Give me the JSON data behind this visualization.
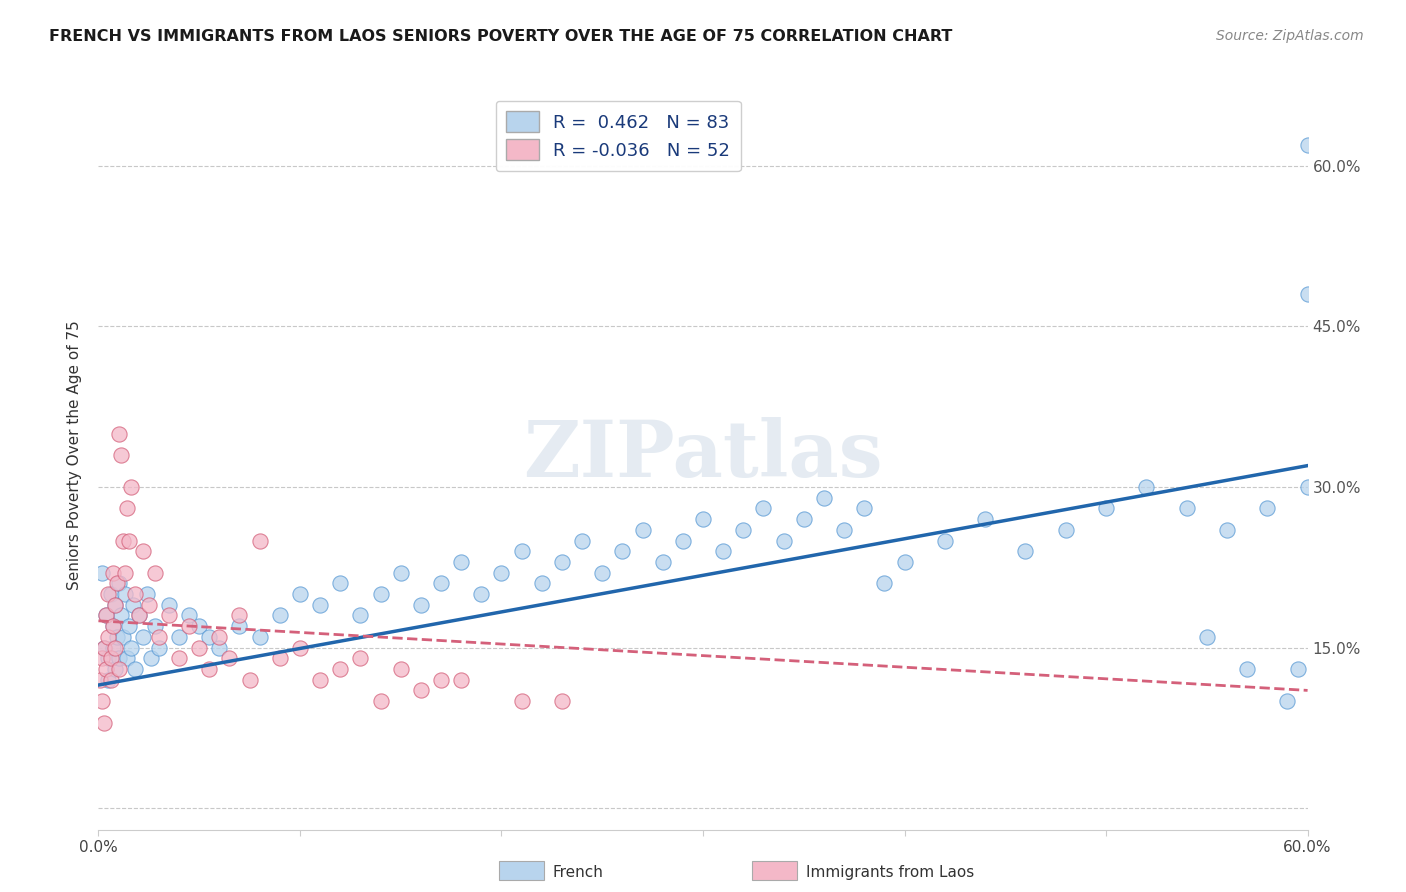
{
  "title": "FRENCH VS IMMIGRANTS FROM LAOS SENIORS POVERTY OVER THE AGE OF 75 CORRELATION CHART",
  "source": "Source: ZipAtlas.com",
  "ylabel": "Seniors Poverty Over the Age of 75",
  "xlim": [
    0.0,
    0.6
  ],
  "ylim": [
    -0.02,
    0.68
  ],
  "yticks": [
    0.0,
    0.15,
    0.3,
    0.45,
    0.6
  ],
  "ytick_labels_right": [
    "",
    "15.0%",
    "30.0%",
    "45.0%",
    "60.0%"
  ],
  "watermark": "ZIPatlas",
  "french_color": "#b8d4ed",
  "french_edge_color": "#5b9bd5",
  "laos_color": "#f4b8c8",
  "laos_edge_color": "#d4607a",
  "french_line_color": "#2166ac",
  "laos_line_color": "#d4607a",
  "legend_french_label": "French",
  "legend_laos_label": "Immigrants from Laos",
  "R_french": 0.462,
  "N_french": 83,
  "R_laos": -0.036,
  "N_laos": 52,
  "french_x": [
    0.002,
    0.003,
    0.004,
    0.005,
    0.005,
    0.006,
    0.007,
    0.007,
    0.008,
    0.008,
    0.009,
    0.01,
    0.01,
    0.011,
    0.012,
    0.013,
    0.014,
    0.015,
    0.016,
    0.017,
    0.018,
    0.02,
    0.022,
    0.024,
    0.026,
    0.028,
    0.03,
    0.035,
    0.04,
    0.045,
    0.05,
    0.055,
    0.06,
    0.07,
    0.08,
    0.09,
    0.1,
    0.11,
    0.12,
    0.13,
    0.14,
    0.15,
    0.16,
    0.17,
    0.18,
    0.19,
    0.2,
    0.21,
    0.22,
    0.23,
    0.24,
    0.25,
    0.26,
    0.27,
    0.28,
    0.29,
    0.3,
    0.31,
    0.32,
    0.33,
    0.34,
    0.35,
    0.36,
    0.37,
    0.38,
    0.39,
    0.4,
    0.42,
    0.44,
    0.46,
    0.48,
    0.5,
    0.52,
    0.54,
    0.55,
    0.56,
    0.57,
    0.58,
    0.59,
    0.595,
    0.6,
    0.6,
    0.6
  ],
  "french_y": [
    0.22,
    0.15,
    0.18,
    0.14,
    0.12,
    0.2,
    0.17,
    0.15,
    0.19,
    0.13,
    0.16,
    0.21,
    0.14,
    0.18,
    0.16,
    0.2,
    0.14,
    0.17,
    0.15,
    0.19,
    0.13,
    0.18,
    0.16,
    0.2,
    0.14,
    0.17,
    0.15,
    0.19,
    0.16,
    0.18,
    0.17,
    0.16,
    0.15,
    0.17,
    0.16,
    0.18,
    0.2,
    0.19,
    0.21,
    0.18,
    0.2,
    0.22,
    0.19,
    0.21,
    0.23,
    0.2,
    0.22,
    0.24,
    0.21,
    0.23,
    0.25,
    0.22,
    0.24,
    0.26,
    0.23,
    0.25,
    0.27,
    0.24,
    0.26,
    0.28,
    0.25,
    0.27,
    0.29,
    0.26,
    0.28,
    0.21,
    0.23,
    0.25,
    0.27,
    0.24,
    0.26,
    0.28,
    0.3,
    0.28,
    0.16,
    0.26,
    0.13,
    0.28,
    0.1,
    0.13,
    0.3,
    0.48,
    0.62
  ],
  "laos_x": [
    0.001,
    0.002,
    0.002,
    0.003,
    0.003,
    0.004,
    0.004,
    0.005,
    0.005,
    0.006,
    0.006,
    0.007,
    0.007,
    0.008,
    0.008,
    0.009,
    0.01,
    0.01,
    0.011,
    0.012,
    0.013,
    0.014,
    0.015,
    0.016,
    0.018,
    0.02,
    0.022,
    0.025,
    0.028,
    0.03,
    0.035,
    0.04,
    0.045,
    0.05,
    0.055,
    0.06,
    0.065,
    0.07,
    0.075,
    0.08,
    0.09,
    0.1,
    0.11,
    0.12,
    0.13,
    0.14,
    0.15,
    0.16,
    0.17,
    0.18,
    0.21,
    0.23
  ],
  "laos_y": [
    0.12,
    0.14,
    0.1,
    0.15,
    0.08,
    0.18,
    0.13,
    0.2,
    0.16,
    0.14,
    0.12,
    0.22,
    0.17,
    0.19,
    0.15,
    0.21,
    0.35,
    0.13,
    0.33,
    0.25,
    0.22,
    0.28,
    0.25,
    0.3,
    0.2,
    0.18,
    0.24,
    0.19,
    0.22,
    0.16,
    0.18,
    0.14,
    0.17,
    0.15,
    0.13,
    0.16,
    0.14,
    0.18,
    0.12,
    0.25,
    0.14,
    0.15,
    0.12,
    0.13,
    0.14,
    0.1,
    0.13,
    0.11,
    0.12,
    0.12,
    0.1,
    0.1
  ],
  "french_trendline": [
    0.115,
    0.32
  ],
  "laos_trendline": [
    0.175,
    0.11
  ],
  "background_color": "#ffffff",
  "grid_color": "#c8c8c8"
}
